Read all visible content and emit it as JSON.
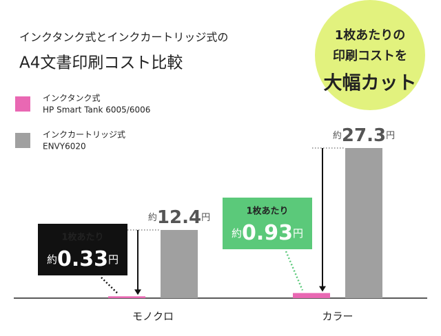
{
  "chart_data": {
    "type": "bar",
    "title": [
      "インクタンク式とインクカートリッジ式の",
      "A4文書印刷コスト比較"
    ],
    "badge": [
      "1枚あたりの",
      "印刷コストを",
      "大幅カット"
    ],
    "categories": [
      "モノクロ",
      "カラー"
    ],
    "series": [
      {
        "name": "インクタンク式",
        "model": "HP Smart Tank 6005/6006",
        "color": "#e968b3",
        "values": [
          0.33,
          0.93
        ],
        "value_labels": [
          "約0.33円",
          "約0.93円"
        ],
        "label_header": "1枚あたり"
      },
      {
        "name": "インクカートリッジ式",
        "model": "ENVY6020",
        "color": "#a0a0a0",
        "values": [
          12.4,
          27.3
        ],
        "value_labels": [
          "約12.4円",
          "約27.3円"
        ]
      }
    ],
    "callout_colors": [
      "#111111",
      "#5bc97a"
    ],
    "ylim": [
      0,
      28
    ]
  }
}
